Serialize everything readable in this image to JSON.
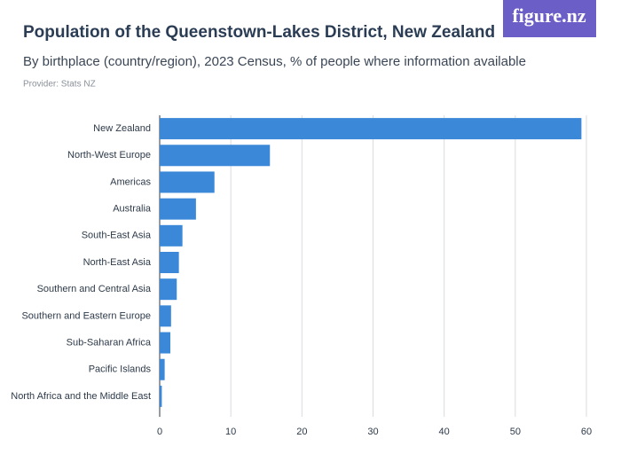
{
  "logo": "figure.nz",
  "chart_data": {
    "type": "barh",
    "title": "Population of the Queenstown-Lakes District, New Zealand",
    "subtitle": "By birthplace (country/region), 2023 Census, % of people where information available",
    "provider": "Provider: Stats NZ",
    "categories": [
      "New Zealand",
      "North-West Europe",
      "Americas",
      "Australia",
      "South-East Asia",
      "North-East Asia",
      "Southern and Central Asia",
      "Southern and Eastern Europe",
      "Sub-Saharan Africa",
      "Pacific Islands",
      "North Africa and the Middle East"
    ],
    "values": [
      59.3,
      15.5,
      7.7,
      5.1,
      3.2,
      2.7,
      2.4,
      1.6,
      1.5,
      0.7,
      0.3
    ],
    "color": "#3b88d8",
    "xlim": [
      0,
      60
    ],
    "xticks": [
      0,
      10,
      20,
      30,
      40,
      50,
      60
    ],
    "grid": true
  }
}
